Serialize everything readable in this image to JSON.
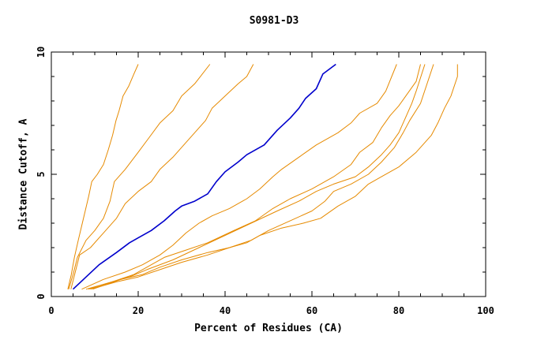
{
  "chart_data": {
    "type": "line",
    "title": "S0981-D3",
    "xlabel": "Percent of Residues (CA)",
    "ylabel": "Distance Cutoff, A",
    "xlim": [
      0,
      100
    ],
    "ylim": [
      0,
      10
    ],
    "x_ticks": [
      0,
      20,
      40,
      60,
      80,
      100
    ],
    "y_ticks": [
      0,
      5,
      10
    ],
    "grid": false,
    "legend": "none",
    "highlight_color": "#0000cc",
    "base_color": "#e68a00",
    "series": [
      {
        "highlight": false,
        "points": [
          [
            3.8,
            0.3
          ],
          [
            4.6,
            0.9
          ],
          [
            5.3,
            1.6
          ],
          [
            6.2,
            2.3
          ],
          [
            7.0,
            2.9
          ],
          [
            7.8,
            3.5
          ],
          [
            8.6,
            4.1
          ],
          [
            9.3,
            4.7
          ],
          [
            10.6,
            5.0
          ],
          [
            12.0,
            5.4
          ],
          [
            13.1,
            6.0
          ],
          [
            14.1,
            6.6
          ],
          [
            14.9,
            7.2
          ],
          [
            15.6,
            7.6
          ],
          [
            16.5,
            8.2
          ],
          [
            17.8,
            8.6
          ],
          [
            19.0,
            9.1
          ],
          [
            20.0,
            9.5
          ]
        ]
      },
      {
        "highlight": false,
        "points": [
          [
            4.0,
            0.3
          ],
          [
            5.0,
            0.9
          ],
          [
            6.0,
            1.6
          ],
          [
            8.0,
            2.3
          ],
          [
            10.0,
            2.7
          ],
          [
            12.0,
            3.2
          ],
          [
            13.5,
            3.9
          ],
          [
            14.5,
            4.7
          ],
          [
            17.0,
            5.2
          ],
          [
            20.0,
            5.9
          ],
          [
            22.5,
            6.5
          ],
          [
            25.0,
            7.1
          ],
          [
            28.0,
            7.6
          ],
          [
            30.0,
            8.2
          ],
          [
            33.0,
            8.7
          ],
          [
            36.5,
            9.5
          ]
        ]
      },
      {
        "highlight": false,
        "points": [
          [
            4.5,
            0.3
          ],
          [
            5.5,
            1.0
          ],
          [
            6.5,
            1.7
          ],
          [
            9.0,
            2.0
          ],
          [
            12.0,
            2.6
          ],
          [
            15.0,
            3.2
          ],
          [
            17.0,
            3.8
          ],
          [
            20.0,
            4.3
          ],
          [
            23.0,
            4.7
          ],
          [
            25.0,
            5.2
          ],
          [
            28.0,
            5.7
          ],
          [
            31.0,
            6.3
          ],
          [
            33.0,
            6.7
          ],
          [
            35.5,
            7.2
          ],
          [
            37.0,
            7.7
          ],
          [
            40.0,
            8.2
          ],
          [
            43.0,
            8.7
          ],
          [
            45.0,
            9.0
          ],
          [
            46.5,
            9.5
          ]
        ]
      },
      {
        "highlight": true,
        "points": [
          [
            5.0,
            0.3
          ],
          [
            8.0,
            0.8
          ],
          [
            11.0,
            1.3
          ],
          [
            15.0,
            1.8
          ],
          [
            18.0,
            2.2
          ],
          [
            20.0,
            2.4
          ],
          [
            23.0,
            2.7
          ],
          [
            26.0,
            3.1
          ],
          [
            28.5,
            3.5
          ],
          [
            30.0,
            3.7
          ],
          [
            33.0,
            3.9
          ],
          [
            36.0,
            4.2
          ],
          [
            38.0,
            4.7
          ],
          [
            40.0,
            5.1
          ],
          [
            43.0,
            5.5
          ],
          [
            45.0,
            5.8
          ],
          [
            49.0,
            6.2
          ],
          [
            52.0,
            6.8
          ],
          [
            55.0,
            7.3
          ],
          [
            57.0,
            7.7
          ],
          [
            58.5,
            8.1
          ],
          [
            61.0,
            8.5
          ],
          [
            62.5,
            9.1
          ],
          [
            65.5,
            9.5
          ]
        ]
      },
      {
        "highlight": false,
        "points": [
          [
            7.0,
            0.3
          ],
          [
            12.0,
            0.7
          ],
          [
            17.0,
            1.0
          ],
          [
            21.0,
            1.3
          ],
          [
            25.0,
            1.7
          ],
          [
            28.0,
            2.1
          ],
          [
            31.0,
            2.6
          ],
          [
            34.0,
            3.0
          ],
          [
            37.0,
            3.3
          ],
          [
            41.0,
            3.6
          ],
          [
            45.0,
            4.0
          ],
          [
            48.0,
            4.4
          ],
          [
            51.0,
            4.9
          ],
          [
            53.0,
            5.2
          ],
          [
            57.0,
            5.7
          ],
          [
            61.0,
            6.2
          ],
          [
            66.0,
            6.7
          ],
          [
            69.0,
            7.1
          ],
          [
            71.0,
            7.5
          ],
          [
            75.0,
            7.9
          ],
          [
            77.0,
            8.4
          ],
          [
            79.5,
            9.5
          ]
        ]
      },
      {
        "highlight": false,
        "points": [
          [
            8.0,
            0.3
          ],
          [
            14.0,
            0.6
          ],
          [
            19.0,
            0.9
          ],
          [
            22.0,
            1.2
          ],
          [
            26.0,
            1.6
          ],
          [
            31.0,
            1.9
          ],
          [
            36.0,
            2.2
          ],
          [
            42.0,
            2.7
          ],
          [
            47.0,
            3.1
          ],
          [
            51.0,
            3.6
          ],
          [
            55.0,
            4.0
          ],
          [
            60.0,
            4.4
          ],
          [
            65.0,
            4.9
          ],
          [
            69.0,
            5.4
          ],
          [
            71.0,
            5.9
          ],
          [
            74.0,
            6.3
          ],
          [
            76.0,
            6.9
          ],
          [
            78.0,
            7.4
          ],
          [
            80.0,
            7.8
          ],
          [
            82.0,
            8.3
          ],
          [
            84.0,
            8.8
          ],
          [
            85.0,
            9.5
          ]
        ]
      },
      {
        "highlight": false,
        "points": [
          [
            8.5,
            0.3
          ],
          [
            14.0,
            0.6
          ],
          [
            18.0,
            0.8
          ],
          [
            22.0,
            1.1
          ],
          [
            28.0,
            1.5
          ],
          [
            34.0,
            2.0
          ],
          [
            40.0,
            2.5
          ],
          [
            46.0,
            3.0
          ],
          [
            52.0,
            3.5
          ],
          [
            57.0,
            3.9
          ],
          [
            61.0,
            4.3
          ],
          [
            65.0,
            4.6
          ],
          [
            70.0,
            4.9
          ],
          [
            73.0,
            5.3
          ],
          [
            76.0,
            5.8
          ],
          [
            78.0,
            6.2
          ],
          [
            80.0,
            6.7
          ],
          [
            81.5,
            7.3
          ],
          [
            83.0,
            7.9
          ],
          [
            84.0,
            8.4
          ],
          [
            86.0,
            9.5
          ]
        ]
      },
      {
        "highlight": false,
        "points": [
          [
            9.0,
            0.3
          ],
          [
            15.0,
            0.6
          ],
          [
            20.0,
            0.8
          ],
          [
            25.0,
            1.1
          ],
          [
            30.0,
            1.4
          ],
          [
            36.0,
            1.7
          ],
          [
            41.0,
            2.0
          ],
          [
            46.0,
            2.3
          ],
          [
            50.0,
            2.7
          ],
          [
            55.0,
            3.1
          ],
          [
            60.0,
            3.5
          ],
          [
            63.0,
            3.9
          ],
          [
            65.0,
            4.3
          ],
          [
            69.0,
            4.6
          ],
          [
            73.0,
            5.0
          ],
          [
            76.0,
            5.5
          ],
          [
            79.0,
            6.1
          ],
          [
            81.0,
            6.7
          ],
          [
            82.5,
            7.2
          ],
          [
            85.0,
            7.9
          ],
          [
            88.0,
            9.5
          ]
        ]
      },
      {
        "highlight": false,
        "points": [
          [
            9.5,
            0.3
          ],
          [
            16.0,
            0.7
          ],
          [
            21.0,
            0.9
          ],
          [
            25.0,
            1.2
          ],
          [
            30.0,
            1.5
          ],
          [
            36.0,
            1.8
          ],
          [
            41.0,
            2.0
          ],
          [
            45.0,
            2.2
          ],
          [
            48.0,
            2.5
          ],
          [
            53.0,
            2.8
          ],
          [
            58.0,
            3.0
          ],
          [
            62.0,
            3.2
          ],
          [
            66.0,
            3.7
          ],
          [
            70.0,
            4.1
          ],
          [
            73.0,
            4.6
          ],
          [
            76.0,
            4.9
          ],
          [
            80.0,
            5.3
          ],
          [
            84.0,
            5.9
          ],
          [
            87.5,
            6.6
          ],
          [
            89.0,
            7.1
          ],
          [
            90.5,
            7.7
          ],
          [
            92.0,
            8.2
          ],
          [
            93.5,
            9.0
          ],
          [
            93.5,
            9.5
          ]
        ]
      }
    ]
  }
}
